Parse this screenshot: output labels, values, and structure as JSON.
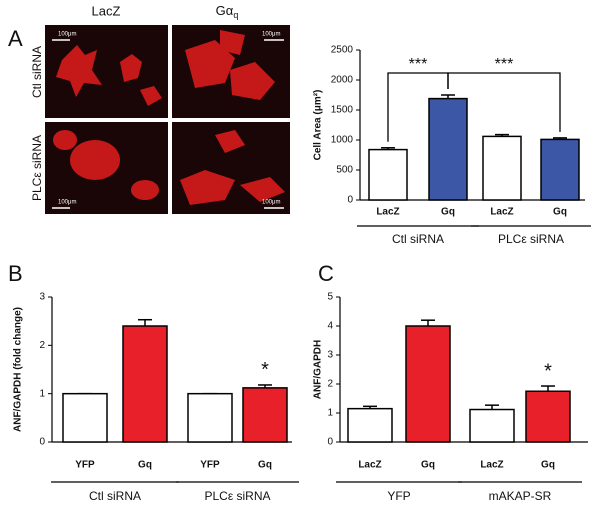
{
  "image_panel": {
    "panel": "A",
    "columns": [
      "LacZ",
      "Gα"
    ],
    "column_subscript": "q",
    "rows": [
      "Ctl siRNA",
      "PLCε siRNA"
    ],
    "scale_labels": [
      "100μm",
      "100μm",
      "100μm",
      "100μm"
    ]
  },
  "chart_data": [
    {
      "type": "bar",
      "panel": "",
      "ylabel": "Cell Area (μm²)",
      "categories": [
        "LacZ",
        "Gq",
        "LacZ",
        "Gq"
      ],
      "values": [
        840,
        1690,
        1060,
        1010
      ],
      "errors": [
        30,
        60,
        30,
        25
      ],
      "colors": [
        "#ffffff",
        "#3b57a6",
        "#ffffff",
        "#3b57a6"
      ],
      "groups": [
        "Ctl siRNA",
        "PLCε siRNA"
      ],
      "ylim": [
        0,
        2500
      ],
      "yticks": [
        0,
        500,
        1000,
        1500,
        2000,
        2500
      ],
      "significance": [
        "***",
        "***"
      ]
    },
    {
      "type": "bar",
      "panel": "B",
      "ylabel": "ANF/GAPDH (fold change)",
      "categories": [
        "YFP",
        "Gq",
        "YFP",
        "Gq"
      ],
      "values": [
        1,
        2.4,
        1,
        1.12
      ],
      "errors": [
        0,
        0.13,
        0,
        0.06
      ],
      "colors": [
        "#ffffff",
        "#e8202a",
        "#ffffff",
        "#e8202a"
      ],
      "groups": [
        "Ctl siRNA",
        "PLCε siRNA"
      ],
      "ylim": [
        0,
        3
      ],
      "yticks": [
        0,
        1,
        2,
        3
      ],
      "significance": [
        "*"
      ]
    },
    {
      "type": "bar",
      "panel": "C",
      "ylabel": "ANF/GAPDH",
      "categories": [
        "LacZ",
        "Gq",
        "LacZ",
        "Gq"
      ],
      "values": [
        1.15,
        4.0,
        1.12,
        1.75
      ],
      "errors": [
        0.08,
        0.2,
        0.15,
        0.18
      ],
      "colors": [
        "#ffffff",
        "#e8202a",
        "#ffffff",
        "#e8202a"
      ],
      "groups": [
        "YFP",
        "mAKAP-SR"
      ],
      "ylim": [
        0,
        5
      ],
      "yticks": [
        0,
        1,
        2,
        3,
        4,
        5
      ],
      "significance": [
        "*"
      ]
    }
  ]
}
